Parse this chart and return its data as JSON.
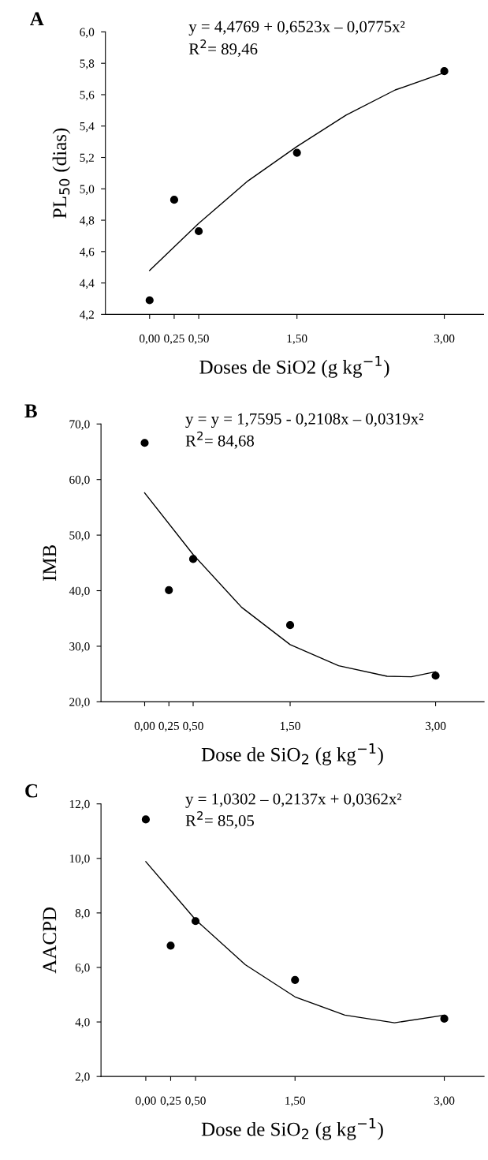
{
  "chart_data": [
    {
      "type": "scatter",
      "title": "A",
      "xlabel": "Doses de SiO2 (g kg$^{−1}$)",
      "ylabel": "PL$_{50}$ (dias)",
      "annotations": [
        "y = 4,4769 + 0,6523x – 0,0775x²",
        "R$^{2}$= 89,46"
      ],
      "x": [
        0,
        0.25,
        0.5,
        1.5,
        3
      ],
      "marker": "circle",
      "grid": false,
      "legend": false,
      "xlim": [
        -0.45,
        3.4
      ],
      "xticks": [
        {
          "value": 0,
          "label": "0,00"
        },
        {
          "value": 0.25,
          "label": "0,25"
        },
        {
          "value": 0.5,
          "label": "0,50"
        },
        {
          "value": 1.5,
          "label": "1,50"
        },
        {
          "value": 3,
          "label": "3,00"
        }
      ],
      "ylim": [
        4.2,
        6.0
      ],
      "yticks": [
        {
          "value": 4.2,
          "label": "4,2"
        },
        {
          "value": 4.4,
          "label": "4,4"
        },
        {
          "value": 4.6,
          "label": "4,6"
        },
        {
          "value": 4.8,
          "label": "4,8"
        },
        {
          "value": 5.0,
          "label": "5,0"
        },
        {
          "value": 5.2,
          "label": "5,2"
        },
        {
          "value": 5.4,
          "label": "5,4"
        },
        {
          "value": 5.6,
          "label": "5,6"
        },
        {
          "value": 5.8,
          "label": "5,8"
        },
        {
          "value": 6.0,
          "label": "6,0"
        }
      ],
      "series": [
        {
          "color": "#000000",
          "values": [
            4.29,
            4.93,
            4.73,
            5.23,
            5.75
          ]
        },
        {
          "type": "line",
          "color": "#000000",
          "marker": "none",
          "x": [
            0,
            0.5,
            1,
            1.5,
            2,
            2.5,
            3
          ],
          "values": [
            4.48,
            4.78,
            5.05,
            5.27,
            5.47,
            5.63,
            5.74
          ]
        }
      ]
    },
    {
      "type": "scatter",
      "title": "B",
      "xlabel": "Dose de SiO$_{2}$ (g kg$^{−1}$)",
      "ylabel": "IMB",
      "annotations": [
        "y = y = 1,7595 - 0,2108x – 0,0319x²",
        "R$^{2}$= 84,68"
      ],
      "x": [
        0,
        0.25,
        0.5,
        1.5,
        3
      ],
      "marker": "circle",
      "grid": false,
      "legend": false,
      "xlim": [
        -0.45,
        3.5
      ],
      "xticks": [
        {
          "value": 0,
          "label": "0,00"
        },
        {
          "value": 0.25,
          "label": "0,25"
        },
        {
          "value": 0.5,
          "label": "0,50"
        },
        {
          "value": 1.5,
          "label": "1,50"
        },
        {
          "value": 3,
          "label": "3,00"
        }
      ],
      "ylim": [
        20,
        70
      ],
      "yticks": [
        {
          "value": 20,
          "label": "20,0"
        },
        {
          "value": 30,
          "label": "30,0"
        },
        {
          "value": 40,
          "label": "40,0"
        },
        {
          "value": 50,
          "label": "50,0"
        },
        {
          "value": 60,
          "label": "60,0"
        },
        {
          "value": 70,
          "label": "70,0"
        }
      ],
      "series": [
        {
          "color": "#000000",
          "values": [
            66.6,
            40.1,
            45.7,
            33.8,
            24.7
          ]
        },
        {
          "type": "line",
          "color": "#000000",
          "marker": "none",
          "x": [
            0,
            0.5,
            1,
            1.5,
            2,
            2.5,
            2.75,
            3
          ],
          "values": [
            57.6,
            46.5,
            37.0,
            30.3,
            26.5,
            24.6,
            24.5,
            25.4
          ]
        }
      ]
    },
    {
      "type": "scatter",
      "title": "C",
      "xlabel": "Dose de SiO$_{2}$ (g kg$^{−1}$)",
      "ylabel": "AACPD",
      "annotations": [
        "y = 1,0302 – 0,2137x + 0,0362x²",
        "R$^{2}$= 85,05"
      ],
      "x": [
        0,
        0.25,
        0.5,
        1.5,
        3
      ],
      "marker": "circle",
      "grid": false,
      "legend": false,
      "xlim": [
        -0.45,
        3.4
      ],
      "xticks": [
        {
          "value": 0,
          "label": "0,00"
        },
        {
          "value": 0.25,
          "label": "0,25"
        },
        {
          "value": 0.5,
          "label": "0,50"
        },
        {
          "value": 1.5,
          "label": "1,50"
        },
        {
          "value": 3,
          "label": "3,00"
        }
      ],
      "ylim": [
        2,
        12
      ],
      "yticks": [
        {
          "value": 2,
          "label": "2,0"
        },
        {
          "value": 4,
          "label": "4,0"
        },
        {
          "value": 6,
          "label": "6,0"
        },
        {
          "value": 8,
          "label": "8,0"
        },
        {
          "value": 10,
          "label": "10,0"
        },
        {
          "value": 12,
          "label": "12,0"
        }
      ],
      "series": [
        {
          "color": "#000000",
          "values": [
            11.43,
            6.8,
            7.7,
            5.54,
            4.12
          ]
        },
        {
          "type": "line",
          "color": "#000000",
          "marker": "none",
          "x": [
            0,
            0.5,
            1,
            1.5,
            2,
            2.5,
            3
          ],
          "values": [
            9.88,
            7.75,
            6.1,
            4.92,
            4.25,
            3.97,
            4.25
          ]
        }
      ]
    }
  ]
}
